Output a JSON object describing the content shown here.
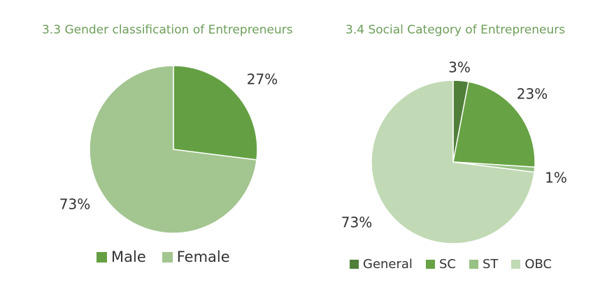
{
  "chart_data": [
    {
      "type": "pie",
      "title": "3.3 Gender classification of Entrepreneurs",
      "slices": [
        {
          "label": "Male",
          "value": 27,
          "display": "27%",
          "color": "#64a043"
        },
        {
          "label": "Female",
          "value": 73,
          "display": "73%",
          "color": "#a3c590"
        }
      ],
      "legend": "bottom"
    },
    {
      "type": "pie",
      "title": "3.4 Social Category of Entrepreneurs",
      "slices": [
        {
          "label": "General",
          "value": 3,
          "display": "3%",
          "color": "#4f7f39"
        },
        {
          "label": "SC",
          "value": 23,
          "display": "23%",
          "color": "#67a244"
        },
        {
          "label": "ST",
          "value": 1,
          "display": "1%",
          "color": "#97c285"
        },
        {
          "label": "OBC",
          "value": 73,
          "display": "73%",
          "color": "#c1dab5"
        }
      ],
      "legend": "bottom"
    }
  ]
}
